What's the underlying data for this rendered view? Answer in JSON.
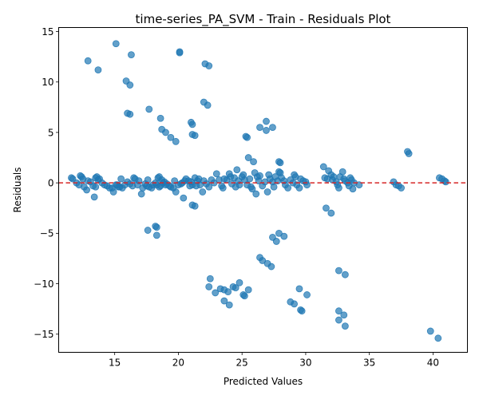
{
  "chart_data": {
    "type": "scatter",
    "title": "time-series_PA_SVM - Train - Residuals Plot",
    "xlabel": "Predicted Values",
    "ylabel": "Residuals",
    "xlim": [
      10.6,
      42.7
    ],
    "ylim": [
      -16.8,
      15.4
    ],
    "xticks": [
      15,
      20,
      25,
      30,
      35,
      40
    ],
    "yticks": [
      -15,
      -10,
      -5,
      0,
      5,
      10,
      15
    ],
    "grid": false,
    "legend": "none",
    "reference_line": {
      "y": 0,
      "color": "#d62728",
      "style": "dashed"
    },
    "marker_color": "#1f77b4",
    "points": [
      [
        11.6,
        0.5
      ],
      [
        11.7,
        0.4
      ],
      [
        12.0,
        0.0
      ],
      [
        12.2,
        -0.2
      ],
      [
        12.3,
        0.7
      ],
      [
        12.4,
        0.6
      ],
      [
        12.5,
        0.4
      ],
      [
        12.6,
        -0.4
      ],
      [
        12.8,
        -0.7
      ],
      [
        12.9,
        0.2
      ],
      [
        13.1,
        0.1
      ],
      [
        13.3,
        -0.3
      ],
      [
        13.4,
        -1.4
      ],
      [
        13.5,
        -0.4
      ],
      [
        13.5,
        0.5
      ],
      [
        13.6,
        0.6
      ],
      [
        13.7,
        0.3
      ],
      [
        13.8,
        0.4
      ],
      [
        14.0,
        0.0
      ],
      [
        14.2,
        -0.2
      ],
      [
        14.4,
        -0.3
      ],
      [
        14.6,
        -0.5
      ],
      [
        14.8,
        -0.5
      ],
      [
        14.9,
        -0.9
      ],
      [
        15.1,
        -0.2
      ],
      [
        15.2,
        -0.2
      ],
      [
        15.3,
        -0.4
      ],
      [
        15.4,
        -0.4
      ],
      [
        15.5,
        0.4
      ],
      [
        15.6,
        -0.5
      ],
      [
        15.8,
        -0.2
      ],
      [
        16.0,
        0.1
      ],
      [
        16.2,
        -0.1
      ],
      [
        16.4,
        -0.3
      ],
      [
        16.5,
        0.5
      ],
      [
        16.6,
        0.4
      ],
      [
        16.8,
        -0.2
      ],
      [
        16.9,
        0.2
      ],
      [
        17.1,
        -1.1
      ],
      [
        17.2,
        -0.5
      ],
      [
        17.4,
        -0.1
      ],
      [
        17.5,
        -0.3
      ],
      [
        17.6,
        0.3
      ],
      [
        17.7,
        -0.4
      ],
      [
        17.9,
        -0.5
      ],
      [
        18.0,
        -0.2
      ],
      [
        18.2,
        0.0
      ],
      [
        18.3,
        -0.2
      ],
      [
        18.4,
        0.5
      ],
      [
        18.5,
        0.6
      ],
      [
        18.5,
        -0.4
      ],
      [
        18.6,
        -0.3
      ],
      [
        18.7,
        0.3
      ],
      [
        18.8,
        0.0
      ],
      [
        18.9,
        0.1
      ],
      [
        19.0,
        -0.2
      ],
      [
        19.1,
        -0.1
      ],
      [
        19.3,
        -0.3
      ],
      [
        19.4,
        -0.4
      ],
      [
        19.6,
        -0.5
      ],
      [
        19.7,
        0.2
      ],
      [
        19.8,
        -0.9
      ],
      [
        20.0,
        -0.2
      ],
      [
        20.2,
        -0.1
      ],
      [
        20.3,
        0.0
      ],
      [
        20.4,
        -1.5
      ],
      [
        20.5,
        0.2
      ],
      [
        20.6,
        0.4
      ],
      [
        20.8,
        0.2
      ],
      [
        20.9,
        -0.3
      ],
      [
        21.0,
        0.1
      ],
      [
        21.1,
        -0.2
      ],
      [
        21.3,
        0.5
      ],
      [
        21.4,
        -0.3
      ],
      [
        21.5,
        0.2
      ],
      [
        21.6,
        0.4
      ],
      [
        21.7,
        -0.2
      ],
      [
        21.9,
        -0.9
      ],
      [
        22.0,
        0.2
      ],
      [
        22.2,
        -0.1
      ],
      [
        22.4,
        -0.4
      ],
      [
        22.6,
        0.3
      ],
      [
        22.8,
        0.0
      ],
      [
        23.0,
        0.9
      ],
      [
        23.2,
        0.3
      ],
      [
        23.4,
        -0.3
      ],
      [
        23.5,
        -0.5
      ],
      [
        23.6,
        0.4
      ],
      [
        23.8,
        0.3
      ],
      [
        24.0,
        0.9
      ],
      [
        24.1,
        0.6
      ],
      [
        24.2,
        -0.1
      ],
      [
        24.4,
        0.5
      ],
      [
        24.5,
        -0.4
      ],
      [
        24.6,
        1.3
      ],
      [
        24.7,
        0.2
      ],
      [
        24.8,
        -0.2
      ],
      [
        25.0,
        0.6
      ],
      [
        25.1,
        0.8
      ],
      [
        25.2,
        0.3
      ],
      [
        25.4,
        -0.2
      ],
      [
        25.5,
        2.5
      ],
      [
        25.6,
        0.4
      ],
      [
        25.7,
        -0.4
      ],
      [
        25.8,
        -0.6
      ],
      [
        25.9,
        2.1
      ],
      [
        26.0,
        1.0
      ],
      [
        26.1,
        -1.1
      ],
      [
        26.2,
        0.6
      ],
      [
        26.3,
        0.2
      ],
      [
        26.4,
        0.7
      ],
      [
        26.6,
        -0.3
      ],
      [
        26.8,
        0.1
      ],
      [
        27.0,
        -0.9
      ],
      [
        27.1,
        0.8
      ],
      [
        27.2,
        0.4
      ],
      [
        27.4,
        0.1
      ],
      [
        27.5,
        -0.4
      ],
      [
        27.6,
        0.6
      ],
      [
        27.8,
        0.2
      ],
      [
        27.9,
        1.1
      ],
      [
        28.0,
        1.0
      ],
      [
        28.1,
        0.5
      ],
      [
        28.3,
        0.2
      ],
      [
        28.4,
        -0.2
      ],
      [
        28.6,
        -0.5
      ],
      [
        28.8,
        0.3
      ],
      [
        29.0,
        0.0
      ],
      [
        29.1,
        0.8
      ],
      [
        29.2,
        0.6
      ],
      [
        29.3,
        -0.2
      ],
      [
        29.5,
        -0.5
      ],
      [
        29.6,
        0.4
      ],
      [
        29.8,
        0.2
      ],
      [
        30.0,
        0.1
      ],
      [
        30.1,
        -0.2
      ],
      [
        31.4,
        1.6
      ],
      [
        31.5,
        0.5
      ],
      [
        31.7,
        0.4
      ],
      [
        31.8,
        1.2
      ],
      [
        32.0,
        0.8
      ],
      [
        32.1,
        0.3
      ],
      [
        32.2,
        0.6
      ],
      [
        32.4,
        0.1
      ],
      [
        32.5,
        -0.2
      ],
      [
        32.6,
        -0.5
      ],
      [
        32.7,
        0.6
      ],
      [
        32.9,
        1.1
      ],
      [
        33.0,
        0.4
      ],
      [
        33.1,
        0.2
      ],
      [
        33.3,
        0.0
      ],
      [
        33.4,
        -0.3
      ],
      [
        33.5,
        0.5
      ],
      [
        33.6,
        0.3
      ],
      [
        33.7,
        -0.6
      ],
      [
        33.8,
        0.0
      ],
      [
        34.2,
        -0.2
      ],
      [
        36.9,
        0.1
      ],
      [
        37.1,
        -0.2
      ],
      [
        37.3,
        -0.3
      ],
      [
        37.5,
        -0.5
      ],
      [
        40.5,
        0.5
      ],
      [
        40.7,
        0.4
      ],
      [
        40.9,
        0.2
      ],
      [
        41.0,
        0.1
      ],
      [
        12.9,
        12.1
      ],
      [
        13.7,
        11.2
      ],
      [
        15.1,
        13.8
      ],
      [
        16.3,
        12.7
      ],
      [
        15.9,
        10.1
      ],
      [
        16.2,
        9.7
      ],
      [
        16.0,
        6.9
      ],
      [
        16.2,
        6.8
      ],
      [
        17.7,
        7.3
      ],
      [
        18.6,
        6.4
      ],
      [
        18.7,
        5.3
      ],
      [
        19.0,
        5.0
      ],
      [
        19.4,
        4.5
      ],
      [
        19.8,
        4.1
      ],
      [
        20.1,
        12.9
      ],
      [
        20.1,
        13.0
      ],
      [
        22.1,
        11.8
      ],
      [
        22.4,
        11.6
      ],
      [
        22.0,
        8.0
      ],
      [
        22.3,
        7.7
      ],
      [
        21.0,
        6.0
      ],
      [
        21.1,
        5.8
      ],
      [
        21.1,
        4.8
      ],
      [
        21.3,
        4.7
      ],
      [
        25.3,
        4.6
      ],
      [
        25.4,
        4.5
      ],
      [
        26.4,
        5.5
      ],
      [
        26.9,
        6.1
      ],
      [
        26.9,
        5.2
      ],
      [
        27.4,
        5.5
      ],
      [
        27.9,
        2.1
      ],
      [
        28.0,
        2.0
      ],
      [
        38.0,
        3.1
      ],
      [
        38.1,
        2.9
      ],
      [
        17.6,
        -4.7
      ],
      [
        18.2,
        -4.3
      ],
      [
        18.3,
        -4.4
      ],
      [
        18.3,
        -5.2
      ],
      [
        21.1,
        -2.2
      ],
      [
        21.3,
        -2.3
      ],
      [
        22.5,
        -9.5
      ],
      [
        22.4,
        -10.3
      ],
      [
        22.9,
        -10.9
      ],
      [
        23.3,
        -10.5
      ],
      [
        23.6,
        -10.6
      ],
      [
        23.9,
        -10.8
      ],
      [
        23.6,
        -11.7
      ],
      [
        24.0,
        -12.1
      ],
      [
        24.3,
        -10.3
      ],
      [
        24.5,
        -10.4
      ],
      [
        24.8,
        -9.9
      ],
      [
        25.1,
        -11.1
      ],
      [
        25.2,
        -11.2
      ],
      [
        25.5,
        -10.6
      ],
      [
        26.4,
        -7.4
      ],
      [
        26.6,
        -7.7
      ],
      [
        27.0,
        -8.0
      ],
      [
        27.3,
        -8.3
      ],
      [
        27.4,
        -5.4
      ],
      [
        27.7,
        -5.8
      ],
      [
        27.9,
        -5.0
      ],
      [
        28.3,
        -5.3
      ],
      [
        28.8,
        -11.8
      ],
      [
        29.1,
        -12.0
      ],
      [
        29.5,
        -10.5
      ],
      [
        29.6,
        -12.6
      ],
      [
        29.7,
        -12.7
      ],
      [
        30.1,
        -11.1
      ],
      [
        31.6,
        -2.5
      ],
      [
        32.0,
        -3.0
      ],
      [
        32.6,
        -8.7
      ],
      [
        33.1,
        -9.1
      ],
      [
        32.6,
        -12.7
      ],
      [
        32.6,
        -13.6
      ],
      [
        33.0,
        -13.1
      ],
      [
        33.1,
        -14.2
      ],
      [
        39.8,
        -14.7
      ],
      [
        40.4,
        -15.4
      ]
    ]
  }
}
